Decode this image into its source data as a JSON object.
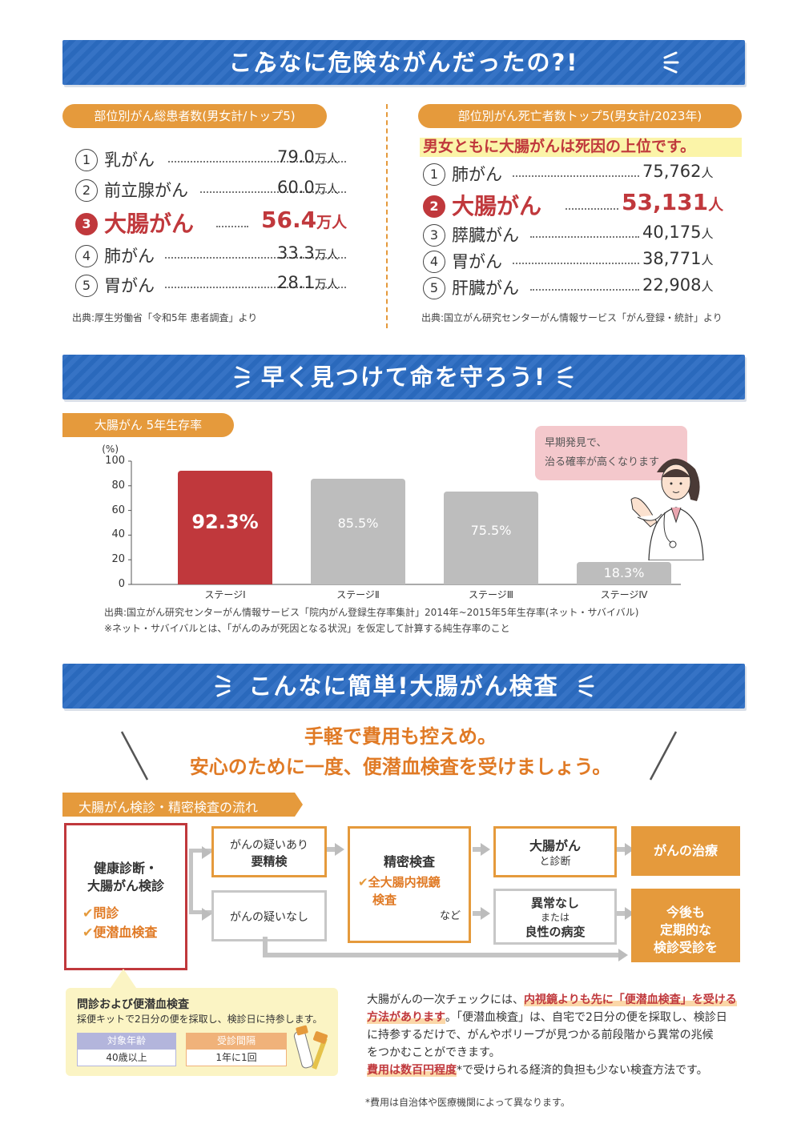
{
  "section1": {
    "title": "こんなに危険ながんだったの?!",
    "left": {
      "pill": "部位別がん総患者数(男女計/トップ5)",
      "rows": [
        {
          "num": "1",
          "name": "乳がん",
          "value": "79.0",
          "unit": "万人"
        },
        {
          "num": "2",
          "name": "前立腺がん",
          "value": "60.0",
          "unit": "万人"
        },
        {
          "num": "3",
          "name": "大腸がん",
          "value": "56.4",
          "unit": "万人"
        },
        {
          "num": "4",
          "name": "肺がん",
          "value": "33.3",
          "unit": "万人"
        },
        {
          "num": "5",
          "name": "胃がん",
          "value": "28.1",
          "unit": "万人"
        }
      ],
      "source": "出典:厚生労働省「令和5年 患者調査」より"
    },
    "right": {
      "pill": "部位別がん死亡者数トップ5(男女計/2023年)",
      "highlight": "男女ともに大腸がんは死因の上位です。",
      "rows": [
        {
          "num": "1",
          "name": "肺がん",
          "value": "75,762",
          "unit": "人"
        },
        {
          "num": "2",
          "name": "大腸がん",
          "value": "53,131",
          "unit": "人"
        },
        {
          "num": "3",
          "name": "膵臓がん",
          "value": "40,175",
          "unit": "人"
        },
        {
          "num": "4",
          "name": "胃がん",
          "value": "38,771",
          "unit": "人"
        },
        {
          "num": "5",
          "name": "肝臓がん",
          "value": "22,908",
          "unit": "人"
        }
      ],
      "source": "出典:国立がん研究センターがん情報サービス「がん登録・統計」より"
    }
  },
  "section2": {
    "title": "早く見つけて命を守ろう!",
    "pill": "大腸がん 5年生存率",
    "bubble": [
      "早期発見で、",
      "治る確率が高くなります"
    ],
    "source1": "出典:国立がん研究センターがん情報サービス「院内がん登録生存率集計」2014年~2015年5年生存率(ネット・サバイバル)",
    "source2": "※ネット・サバイバルとは、「がんのみが死因となる状況」を仮定して計算する純生存率のこと"
  },
  "chart_data": {
    "type": "bar",
    "ylabel": "(%)",
    "ylim": [
      0,
      100
    ],
    "yticks": [
      "100",
      "80",
      "60",
      "40",
      "20",
      "0"
    ],
    "categories": [
      "ステージⅠ",
      "ステージⅡ",
      "ステージⅢ",
      "ステージⅣ"
    ],
    "values": [
      92.3,
      85.5,
      75.5,
      18.3
    ],
    "value_labels": [
      "92.3%",
      "85.5%",
      "75.5%",
      "18.3%"
    ],
    "colors": [
      "#c0383c",
      "#bdbdbd",
      "#bdbdbd",
      "#bdbdbd"
    ]
  },
  "section3": {
    "title": "こんなに簡単!大腸がん検査",
    "headline1": "手軽で費用も控えめ。",
    "headline2": "安心のために一度、便潜血検査を受けましょう。",
    "flow_pill": "大腸がん検診・精密検査の流れ",
    "flow": {
      "start_title1": "健康診断・",
      "start_title2": "大腸がん検診",
      "start_item1": "問診",
      "start_item2": "便潜血検査",
      "pos1": "がんの疑いあり",
      "pos2": "要精検",
      "neg": "がんの疑いなし",
      "detail_title": "精密検査",
      "detail_item1": "全大腸内視鏡",
      "detail_item2": "検査",
      "detail_etc": "など",
      "res_pos1": "大腸がん",
      "res_pos2": "と診断",
      "res_neg1": "異常なし",
      "res_neg2": "または",
      "res_neg3": "良性の病変",
      "out_pos": "がんの治療",
      "out_neg1": "今後も",
      "out_neg2": "定期的な",
      "out_neg3": "検診受診を"
    },
    "info": {
      "title": "問診および便潜血検査",
      "desc": "採便キットで2日分の便を採取し、検診日に持参します。",
      "age_label": "対象年齢",
      "age_value": "40歳以上",
      "interval_label": "受診間隔",
      "interval_value": "1年に1回"
    },
    "body": {
      "l1a": "大腸がんの一次チェックには、",
      "l1b": "内視鏡よりも先に「便潜血検査」を受ける",
      "l2a": "方法があります",
      "l2b": "。「便潜血検査」は、自宅で2日分の便を採取し、検診日",
      "l3": "に持参するだけで、がんやポリープが見つかる前段階から異常の兆候",
      "l4": "をつかむことができます。",
      "l5a": "費用は数百円程度",
      "l5b": "*で受けられる経済的負担も少ない検査方法です。"
    },
    "footnote": "*費用は自治体や医療機関によって異なります。"
  }
}
